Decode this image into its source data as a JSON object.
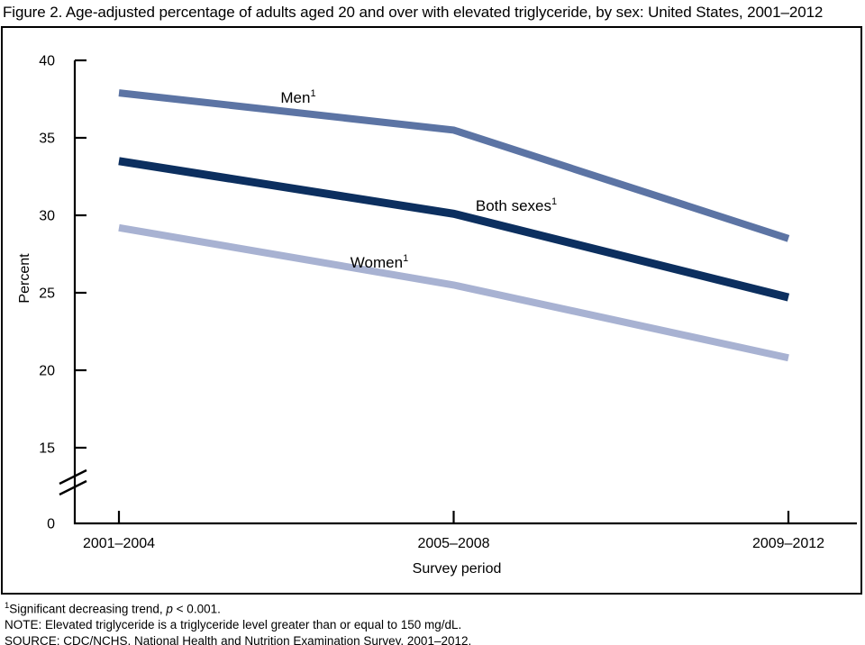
{
  "title": "Figure 2. Age-adjusted percentage of adults aged 20 and over with elevated triglyceride, by sex: United States, 2001–2012",
  "chart_data": {
    "type": "line",
    "title": "Figure 2. Age-adjusted percentage of adults aged 20 and over with elevated triglyceride, by sex: United States, 2001–2012",
    "xlabel": "Survey period",
    "ylabel": "Percent",
    "categories": [
      "2001–2004",
      "2005–2008",
      "2009–2012"
    ],
    "yticks": [
      0,
      15,
      20,
      25,
      30,
      35,
      40
    ],
    "ylim": [
      0,
      40
    ],
    "axis_break": "y-axis break between 0 and 15",
    "grid": false,
    "legend": "inline labels next to lines",
    "series": [
      {
        "name": "Men",
        "footnote_marker": "1",
        "values": [
          37.9,
          35.5,
          28.5
        ],
        "color": "#5c74a4"
      },
      {
        "name": "Both sexes",
        "footnote_marker": "1",
        "values": [
          33.5,
          30.1,
          24.7
        ],
        "color": "#0c2f5f"
      },
      {
        "name": "Women",
        "footnote_marker": "1",
        "values": [
          29.2,
          25.5,
          20.8
        ],
        "color": "#a8b2d2"
      }
    ]
  },
  "footnotes": {
    "f1_sup": "1",
    "f1_pre": "Significant decreasing trend, ",
    "f1_italic": "p",
    "f1_post": " < 0.001.",
    "note": "NOTE: Elevated triglyceride is a triglyceride level greater than or equal to 150 mg/dL.",
    "source": "SOURCE: CDC/NCHS, National Health and Nutrition Examination Survey, 2001–2012."
  }
}
